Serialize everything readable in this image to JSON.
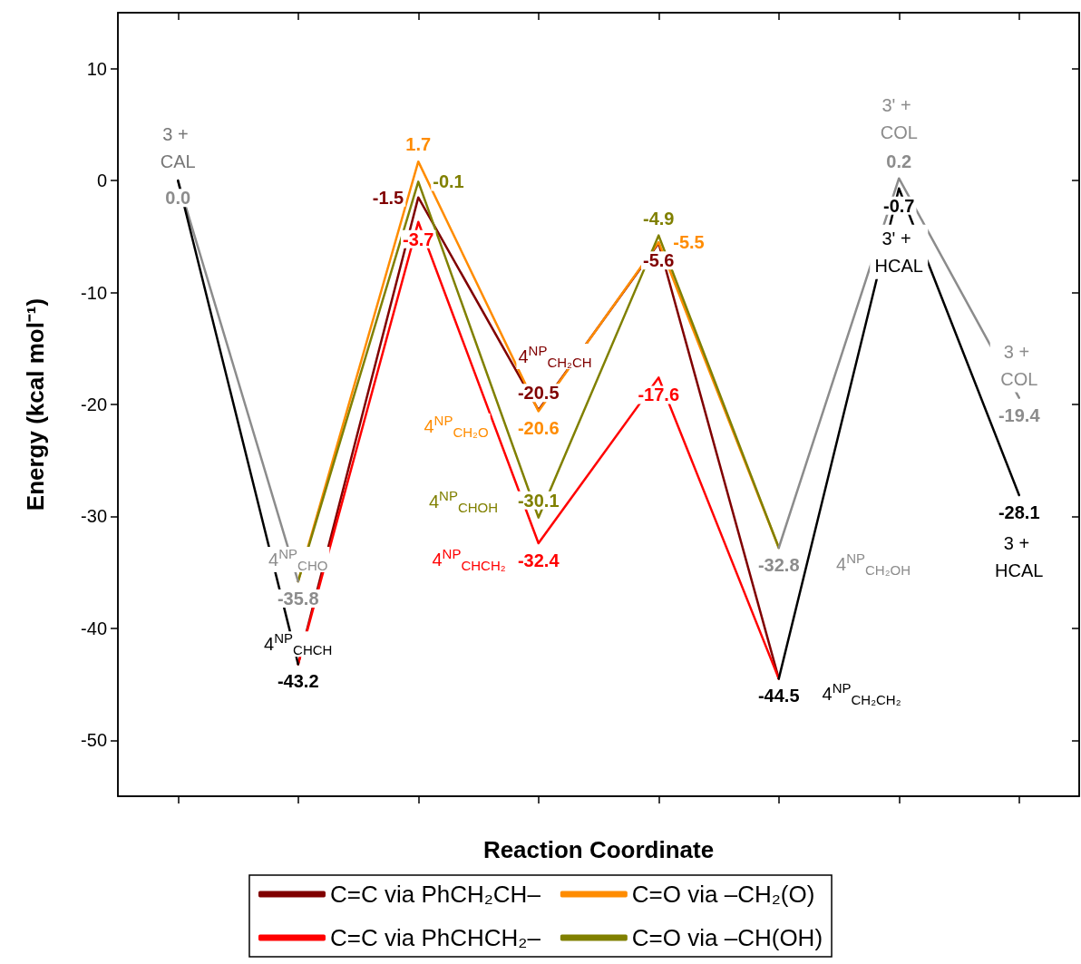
{
  "chart_data": {
    "type": "line",
    "xlabel": "Reaction Coordinate",
    "ylabel": "Energy (kcal mol⁻¹)",
    "categories": [
      null,
      null,
      null,
      null,
      null,
      null,
      null,
      null
    ],
    "ylim": [
      -55,
      15
    ],
    "yticks": [
      -50,
      -40,
      -30,
      -20,
      -10,
      0,
      10
    ],
    "tick_labels": "y",
    "grid": false,
    "legend": "bottom",
    "series": [
      {
        "name": "C=C via PhCH₂CH–",
        "color": "#800000",
        "values": [
          null,
          -43.2,
          -1.5,
          -20.5,
          -5.6,
          -44.5,
          null,
          null
        ],
        "value_labels": [
          null,
          null,
          "-1.5",
          "-20.5",
          "-5.6",
          null,
          null,
          null
        ]
      },
      {
        "name": "C=O via –CH₂(O)",
        "color": "#ff8c00",
        "values": [
          null,
          -35.8,
          1.7,
          -20.6,
          -5.5,
          -32.8,
          null,
          null
        ],
        "value_labels": [
          null,
          null,
          "1.7",
          "-20.6",
          "-5.5",
          null,
          null,
          null
        ]
      },
      {
        "name": "C=C via PhCHCH₂–",
        "color": "#ff0000",
        "values": [
          null,
          -43.2,
          -3.7,
          -32.4,
          -17.6,
          -44.5,
          null,
          null
        ],
        "value_labels": [
          null,
          null,
          "-3.7",
          "-32.4",
          "-17.6",
          null,
          null,
          null
        ]
      },
      {
        "name": "C=O via –CH(OH)",
        "color": "#808000",
        "values": [
          null,
          -35.8,
          -0.1,
          -30.1,
          -4.9,
          -32.8,
          null,
          null
        ],
        "value_labels": [
          null,
          null,
          "-0.1",
          "-30.1",
          "-4.9",
          null,
          null,
          null
        ]
      },
      {
        "color": "#8c8c8c",
        "colors": [
          "#c8c8c8",
          "#8c8c8c",
          null,
          null,
          null,
          "#8c8c8c",
          "#8c8c8c",
          "#8c8c8c"
        ],
        "values": [
          0.0,
          -35.8,
          null,
          null,
          null,
          -32.8,
          0.2,
          -19.4
        ],
        "value_labels": [
          "0.0",
          "-35.8",
          null,
          null,
          null,
          "-32.8",
          "0.2",
          "-19.4"
        ]
      },
      {
        "color": "#000000",
        "colors": [
          "#c8c8c8",
          "#000000",
          null,
          null,
          null,
          "#000000",
          "#000000",
          "#000000"
        ],
        "values": [
          0.0,
          -43.2,
          null,
          null,
          null,
          -44.5,
          -0.7,
          -28.1
        ],
        "value_labels": [
          null,
          "-43.2",
          null,
          null,
          null,
          "-44.5",
          "-0.7",
          "-28.1"
        ]
      }
    ],
    "annotations": [
      {
        "text": "3 + CAL",
        "y": 0.0
      },
      {
        "text": "4$^{NP}$$_{CHO}$",
        "y": -35.8
      },
      {
        "text": "4$^{NP}$$_{CHCH}$",
        "y": -43.2
      },
      "4$^{NP}$$_{CH₂CH}$",
      "4$^{NP}$$_{CH₂O}$",
      "4$^{NP}$$_{CHOH}$",
      "4$^{NP}$$_{CHCH₂}$",
      "4$^{NP}$$_{CH₂OH}$",
      "4$^{NP}$$_{CH₂CH₂}$",
      {
        "text": "3' + COL",
        "y": 0.2
      },
      {
        "text": "3' + HCAL",
        "y": -0.7
      },
      {
        "text": "3 + COL",
        "y": -19.4
      },
      {
        "text": "3 + HCAL",
        "y": -28.1
      }
    ]
  }
}
